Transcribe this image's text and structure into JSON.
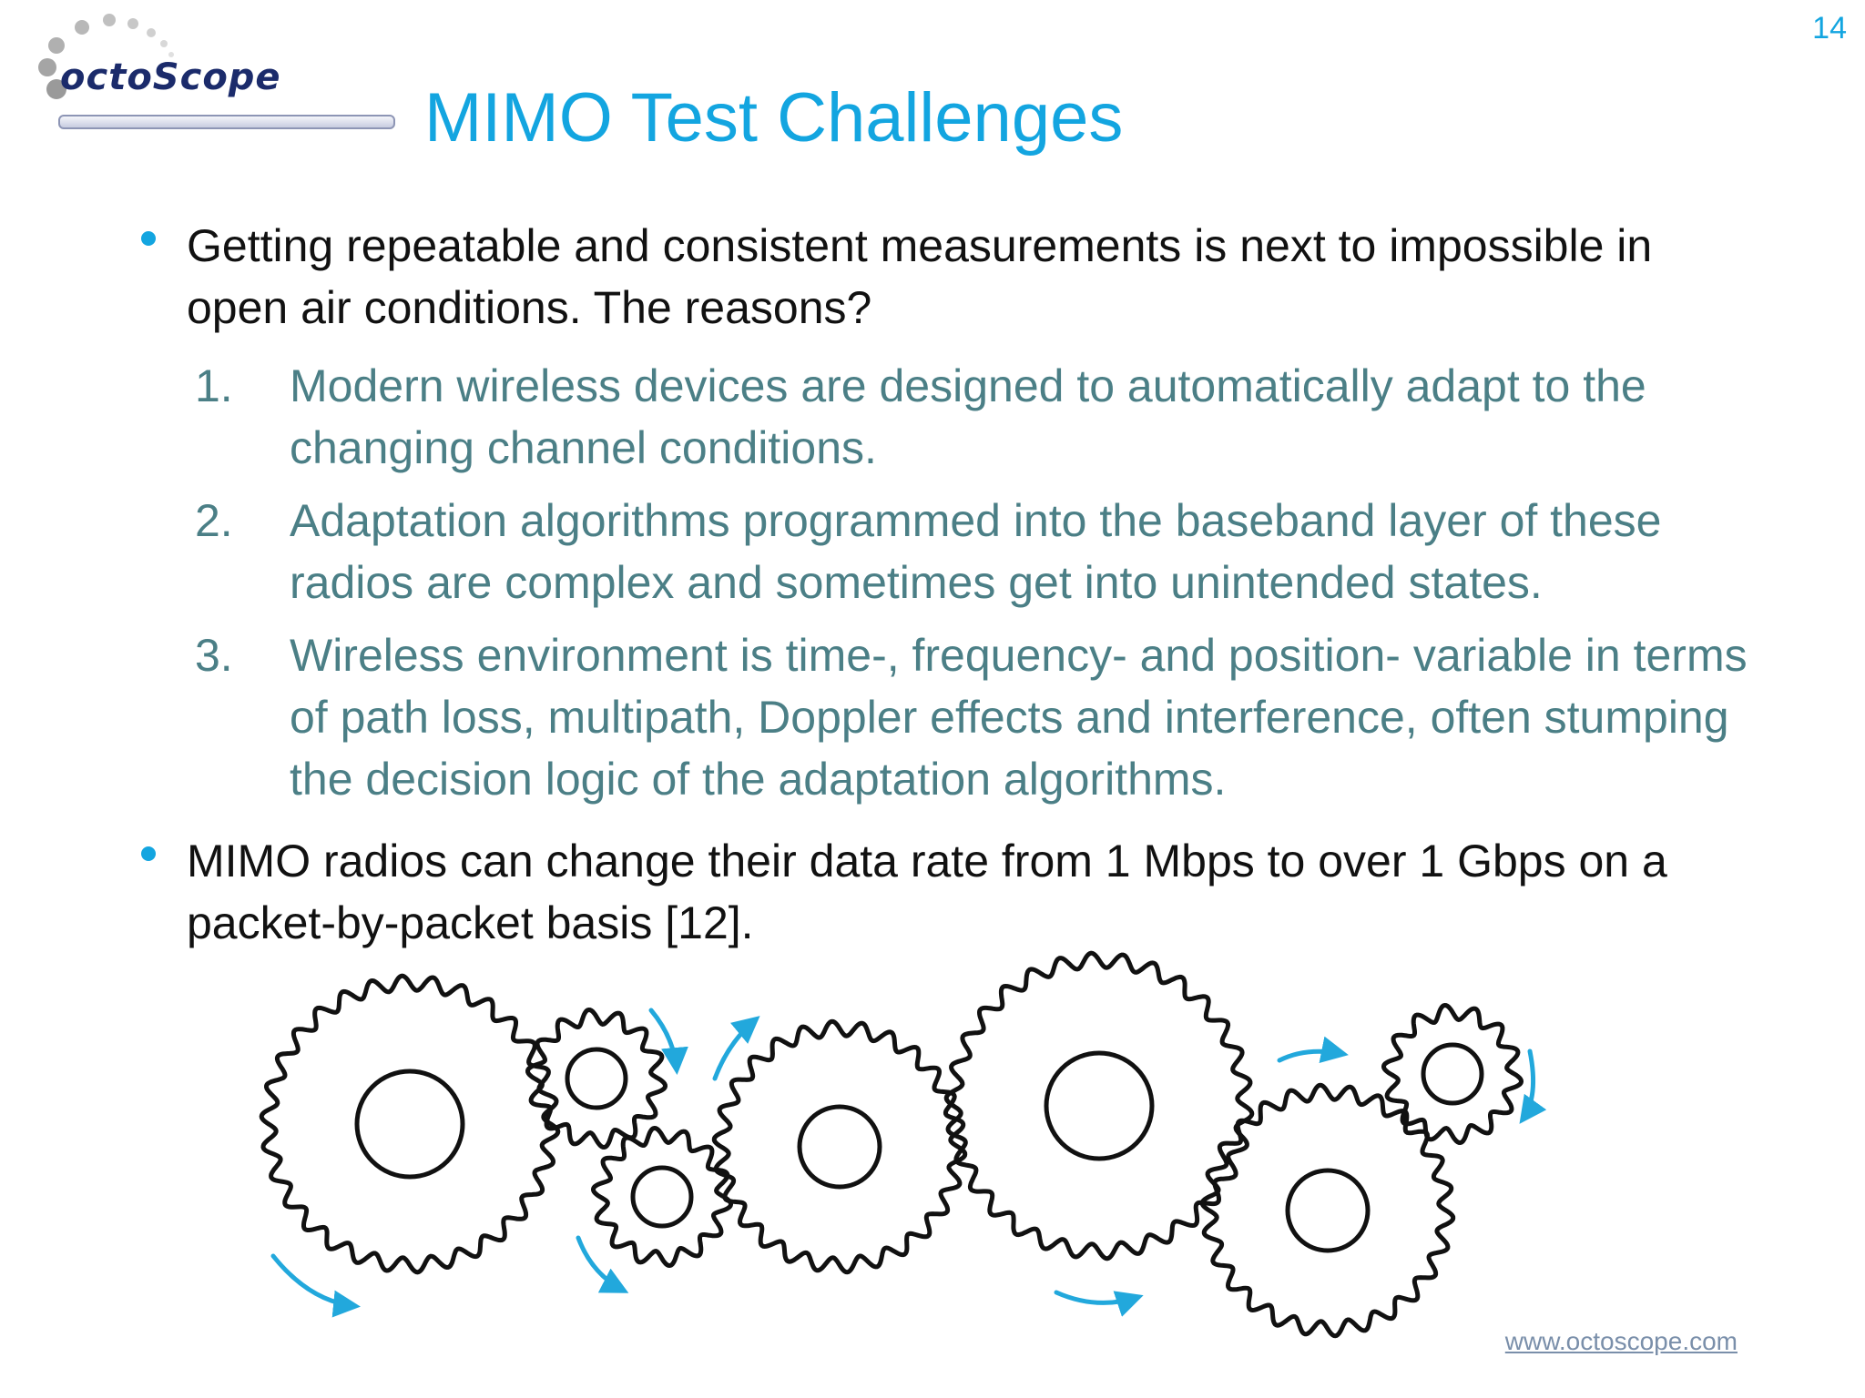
{
  "logo": {
    "text": "octoScope"
  },
  "page_number": "14",
  "title": "MIMO Test Challenges",
  "bullets": [
    {
      "text": "Getting repeatable and consistent measurements is next to impossible in open air conditions.  The reasons?"
    },
    {
      "text": "MIMO radios can change their data rate from 1 Mbps to over 1 Gbps on a packet-by-packet basis [12]."
    }
  ],
  "numbered_items": [
    {
      "number": "1.",
      "text": "Modern wireless devices are designed to automatically adapt to the changing channel conditions."
    },
    {
      "number": "2.",
      "text": "Adaptation algorithms programmed into the baseband layer of these radios are complex and sometimes get into unintended states."
    },
    {
      "number": "3.",
      "text": "Wireless environment is time-, frequency- and position- variable in terms of path loss, multipath, Doppler effects and interference, often stumping the decision logic of the adaptation algorithms."
    }
  ],
  "footer": {
    "website": "www.octoscope.com"
  },
  "colors": {
    "accent": "#13a5e0",
    "numbered_text": "#4b7f86",
    "body_text": "#111111"
  }
}
